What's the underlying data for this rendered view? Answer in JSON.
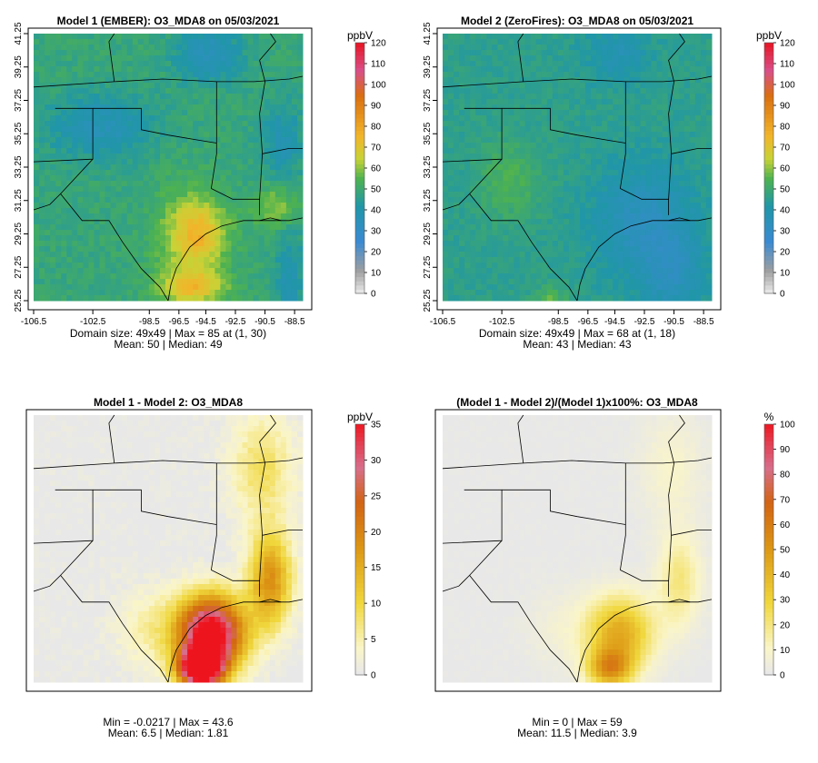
{
  "colors": {
    "scale": [
      "#e5e5e5",
      "#a0a0a0",
      "#2f7fd0",
      "#20a0a0",
      "#55b44a",
      "#c8d236",
      "#f2b52a",
      "#d96f10",
      "#d9508a",
      "#e8101c"
    ],
    "land": "#e6e6e6",
    "border": "#000000"
  },
  "chart_data": [
    {
      "id": "p1",
      "type": "heatmap",
      "title": "Model 1 (EMBER): O3_MDA8 on 05/03/2021",
      "unit": "ppbV",
      "colorbar": {
        "min": 0,
        "max": 120,
        "ticks": [
          "0",
          "10",
          "20",
          "30",
          "40",
          "50",
          "60",
          "70",
          "80",
          "90",
          "100",
          "110",
          "120"
        ]
      },
      "x_ticks": [
        "-106.5",
        "-102.5",
        "-98.5",
        "-96.5",
        "-94.5",
        "-92.5",
        "-90.5",
        "-88.5"
      ],
      "y_ticks": [
        "25.25",
        "27.25",
        "29.25",
        "31.25",
        "33.25",
        "35.25",
        "37.25",
        "39.25",
        "41.25"
      ],
      "xlim": [
        -107,
        -88
      ],
      "ylim": [
        25,
        42
      ],
      "grid_size": "49x49",
      "stats": [
        "Domain size: 49x49 | Max = 85 at (1, 30)",
        "Mean: 50 |  Median: 49"
      ],
      "max": 85,
      "mean": 50,
      "median": 49
    },
    {
      "id": "p2",
      "type": "heatmap",
      "title": "Model 2 (ZeroFires): O3_MDA8 on 05/03/2021",
      "unit": "ppbV",
      "colorbar": {
        "min": 0,
        "max": 120,
        "ticks": [
          "0",
          "10",
          "20",
          "30",
          "40",
          "50",
          "60",
          "70",
          "80",
          "90",
          "100",
          "110",
          "120"
        ]
      },
      "x_ticks": [
        "-106.5",
        "-102.5",
        "-98.5",
        "-96.5",
        "-94.5",
        "-92.5",
        "-90.5",
        "-88.5"
      ],
      "y_ticks": [
        "25.25",
        "27.25",
        "29.25",
        "31.25",
        "33.25",
        "35.25",
        "37.25",
        "39.25",
        "41.25"
      ],
      "xlim": [
        -107,
        -88
      ],
      "ylim": [
        25,
        42
      ],
      "grid_size": "49x49",
      "stats": [
        "Domain size: 49x49 | Max = 68 at (1, 18)",
        "Mean: 43 |  Median: 43"
      ],
      "max": 68,
      "mean": 43,
      "median": 43
    },
    {
      "id": "p3",
      "type": "heatmap",
      "title": "Model 1 - Model 2: O3_MDA8",
      "unit": "ppbV",
      "colorbar": {
        "min": 0,
        "max": 35,
        "ticks": [
          "0",
          "5",
          "10",
          "15",
          "20",
          "25",
          "30",
          "35"
        ]
      },
      "stats": [
        "Min = -0.0217 | Max = 43.6",
        "Mean: 6.5 |  Median: 1.81"
      ],
      "min": -0.0217,
      "max": 43.6,
      "mean": 6.5,
      "median": 1.81
    },
    {
      "id": "p4",
      "type": "heatmap",
      "title": "(Model 1 - Model 2)/(Model 1)x100%: O3_MDA8",
      "unit": "%",
      "colorbar": {
        "min": 0,
        "max": 100,
        "ticks": [
          "0",
          "10",
          "20",
          "30",
          "40",
          "50",
          "60",
          "70",
          "80",
          "90",
          "100"
        ]
      },
      "stats": [
        "Min = 0 | Max = 59",
        "Mean: 11.5 |  Median: 3.9"
      ],
      "min": 0,
      "max": 59,
      "mean": 11.5,
      "median": 3.9
    }
  ]
}
